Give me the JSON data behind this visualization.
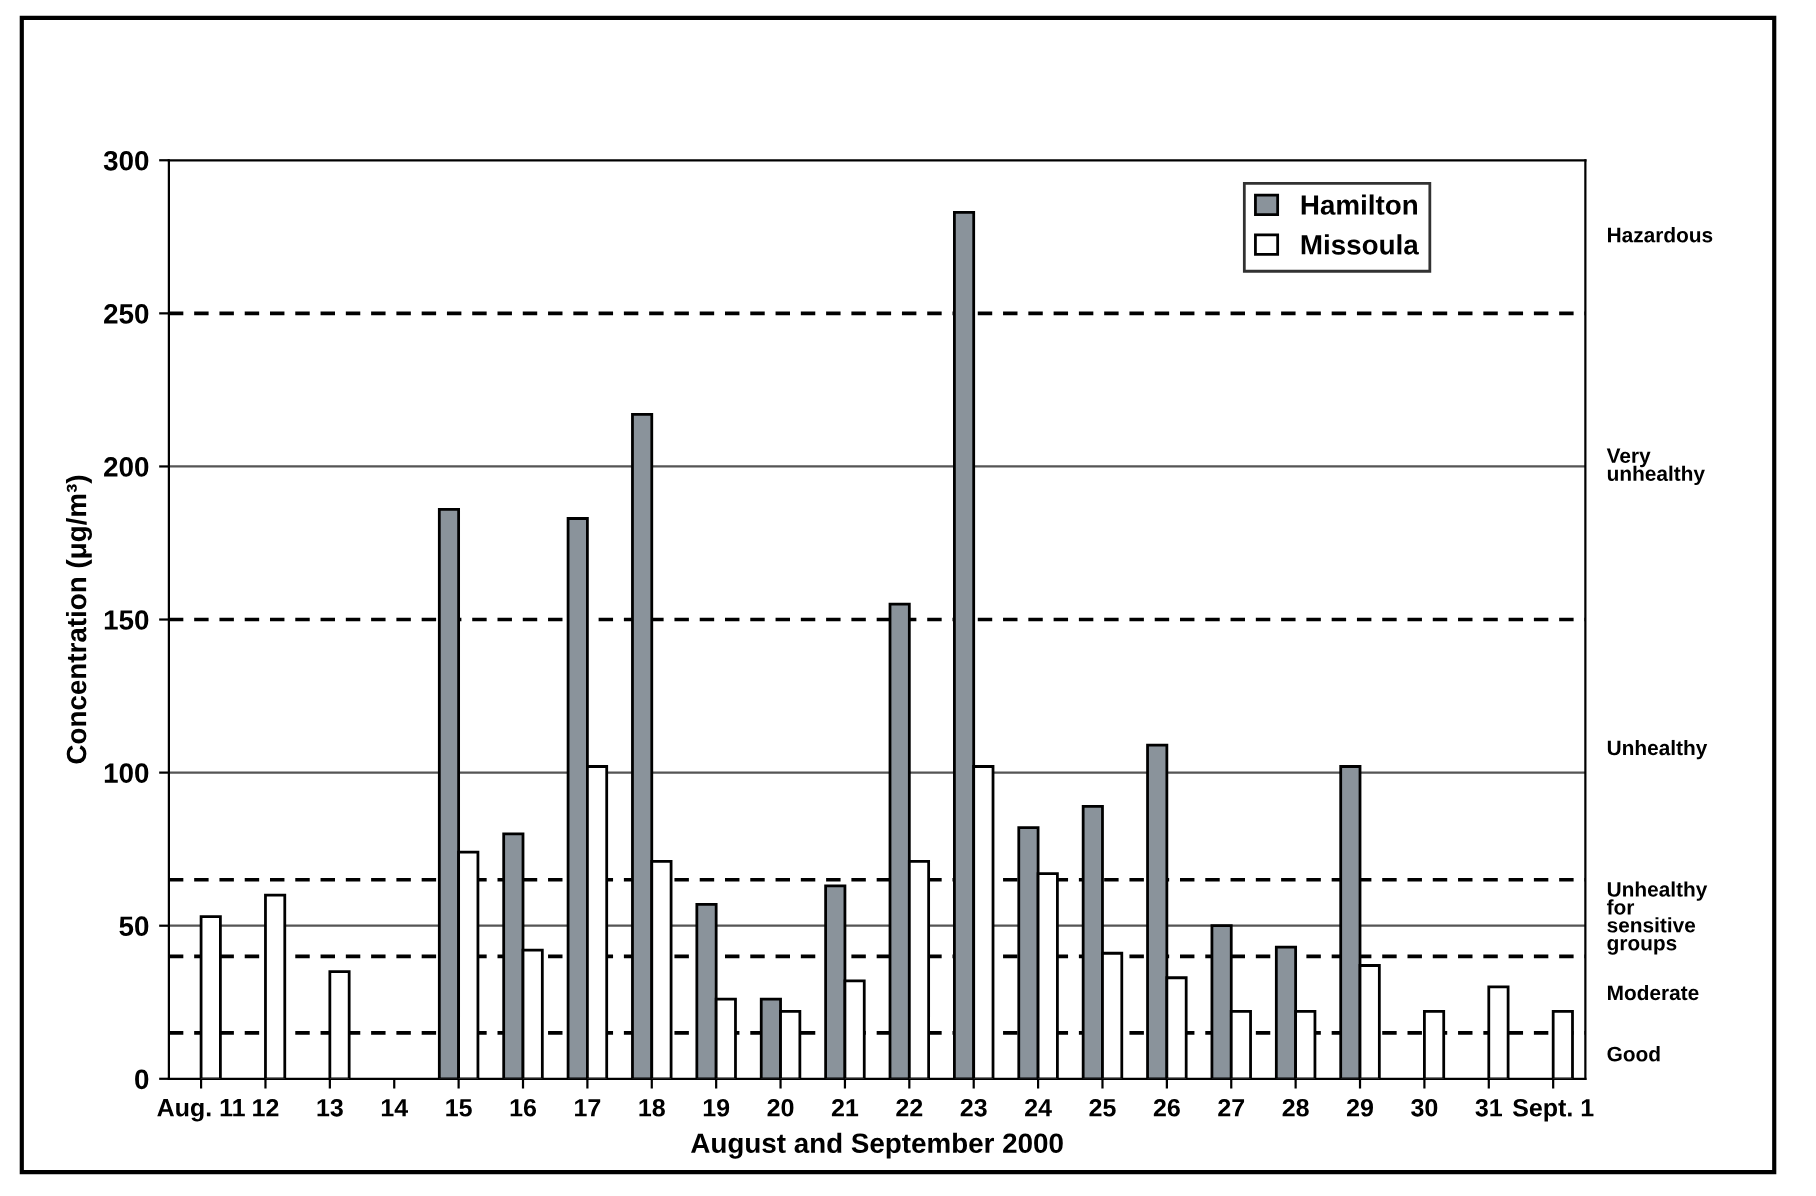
{
  "chart_data": {
    "type": "bar",
    "xlabel": "August and September 2000",
    "ylabel": "Concentration (μg/m³)",
    "categories": [
      "Aug. 11",
      "12",
      "13",
      "14",
      "15",
      "16",
      "17",
      "18",
      "19",
      "20",
      "21",
      "22",
      "23",
      "24",
      "25",
      "26",
      "27",
      "28",
      "29",
      "30",
      "31",
      "Sept. 1"
    ],
    "series": [
      {
        "name": "Hamilton",
        "color": "#8a939b",
        "values": [
          null,
          null,
          null,
          null,
          186,
          80,
          183,
          217,
          57,
          26,
          63,
          155,
          283,
          82,
          89,
          109,
          50,
          43,
          102,
          null,
          null,
          null
        ]
      },
      {
        "name": "Missoula",
        "color": "#ffffff",
        "values": [
          53,
          60,
          35,
          null,
          74,
          42,
          102,
          71,
          26,
          22,
          32,
          71,
          102,
          67,
          41,
          33,
          22,
          22,
          37,
          22,
          30,
          22
        ]
      }
    ],
    "ylim": [
      0,
      300
    ],
    "yticks": [
      0,
      50,
      100,
      150,
      200,
      250,
      300
    ],
    "grid": "y",
    "legend": "top right",
    "ref_lines": [
      {
        "axis": "y",
        "value": 15,
        "line_style": "dashed"
      },
      {
        "axis": "y",
        "value": 40,
        "line_style": "dashed"
      },
      {
        "axis": "y",
        "value": 65,
        "line_style": "dashed"
      },
      {
        "axis": "y",
        "value": 150,
        "line_style": "dashed"
      },
      {
        "axis": "y",
        "value": 250,
        "line_style": "dashed"
      }
    ],
    "annotations": [
      "Good",
      "Moderate",
      "Unhealthy\nfor\nsensitive\ngroups",
      "Unhealthy",
      "Very\nunhealthy",
      "Hazardous"
    ]
  }
}
